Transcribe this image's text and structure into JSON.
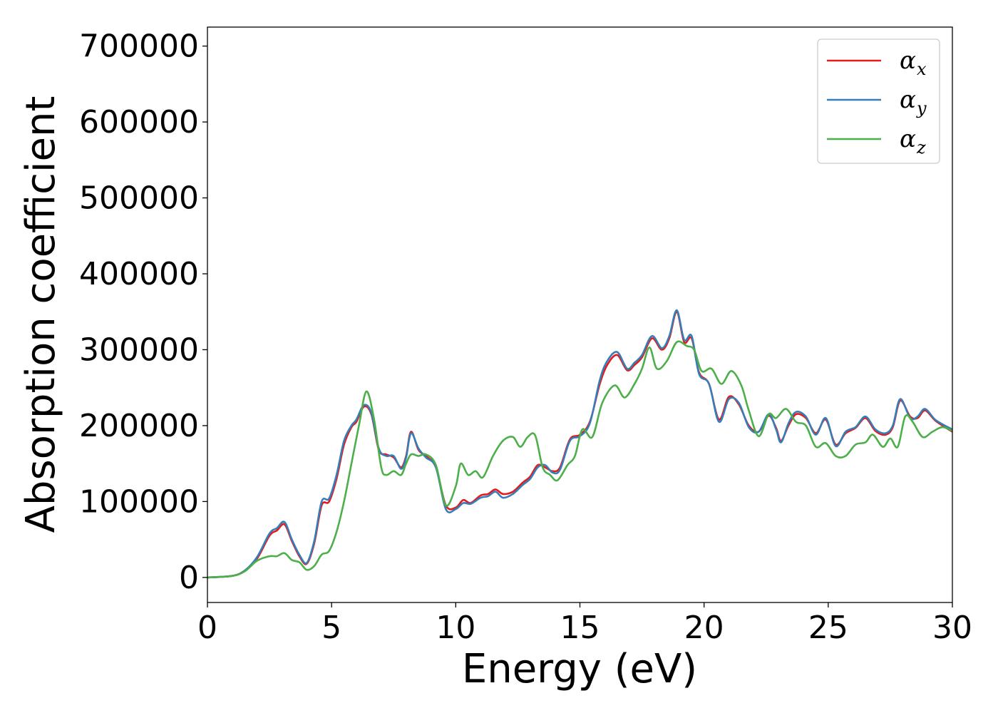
{
  "chart_data": {
    "type": "line",
    "title": "",
    "xlabel": "Energy (eV)",
    "ylabel": "Absorption coefficient",
    "xlim": [
      0,
      30
    ],
    "ylim": [
      -33000,
      725000
    ],
    "xticks": [
      0,
      5,
      10,
      15,
      20,
      25,
      30
    ],
    "yticks": [
      0,
      100000,
      200000,
      300000,
      400000,
      500000,
      600000,
      700000
    ],
    "grid": false,
    "legend_position": "top-right",
    "series": [
      {
        "name_symbol": "α",
        "name_sub": "x",
        "color": "#e41a1c",
        "points": [
          [
            0,
            0
          ],
          [
            1,
            2000
          ],
          [
            1.5,
            9000
          ],
          [
            2,
            25000
          ],
          [
            2.5,
            55000
          ],
          [
            2.8,
            62000
          ],
          [
            3.1,
            70000
          ],
          [
            3.4,
            48000
          ],
          [
            3.7,
            28000
          ],
          [
            4.0,
            18000
          ],
          [
            4.3,
            45000
          ],
          [
            4.6,
            95000
          ],
          [
            4.9,
            100000
          ],
          [
            5.2,
            130000
          ],
          [
            5.5,
            175000
          ],
          [
            5.8,
            198000
          ],
          [
            6.0,
            205000
          ],
          [
            6.3,
            225000
          ],
          [
            6.6,
            215000
          ],
          [
            6.9,
            168000
          ],
          [
            7.2,
            162000
          ],
          [
            7.5,
            158000
          ],
          [
            7.8,
            145000
          ],
          [
            8.0,
            160000
          ],
          [
            8.2,
            192000
          ],
          [
            8.5,
            168000
          ],
          [
            8.8,
            160000
          ],
          [
            9.2,
            145000
          ],
          [
            9.6,
            95000
          ],
          [
            10,
            92000
          ],
          [
            10.3,
            102000
          ],
          [
            10.6,
            98000
          ],
          [
            11,
            108000
          ],
          [
            11.3,
            110000
          ],
          [
            11.6,
            116000
          ],
          [
            11.9,
            110000
          ],
          [
            12.3,
            113000
          ],
          [
            12.7,
            125000
          ],
          [
            13,
            133000
          ],
          [
            13.3,
            148000
          ],
          [
            13.6,
            145000
          ],
          [
            13.9,
            140000
          ],
          [
            14.2,
            145000
          ],
          [
            14.6,
            182000
          ],
          [
            15,
            188000
          ],
          [
            15.4,
            205000
          ],
          [
            15.8,
            255000
          ],
          [
            16.1,
            280000
          ],
          [
            16.5,
            293000
          ],
          [
            16.9,
            273000
          ],
          [
            17.2,
            280000
          ],
          [
            17.5,
            290000
          ],
          [
            17.9,
            315000
          ],
          [
            18.3,
            300000
          ],
          [
            18.6,
            315000
          ],
          [
            18.9,
            350000
          ],
          [
            19.2,
            310000
          ],
          [
            19.5,
            315000
          ],
          [
            19.8,
            270000
          ],
          [
            20.2,
            255000
          ],
          [
            20.6,
            208000
          ],
          [
            21,
            238000
          ],
          [
            21.4,
            228000
          ],
          [
            21.8,
            200000
          ],
          [
            22.2,
            192000
          ],
          [
            22.6,
            213000
          ],
          [
            22.9,
            197000
          ],
          [
            23.1,
            180000
          ],
          [
            23.4,
            200000
          ],
          [
            23.7,
            215000
          ],
          [
            24.1,
            210000
          ],
          [
            24.5,
            190000
          ],
          [
            24.9,
            208000
          ],
          [
            25.3,
            175000
          ],
          [
            25.7,
            190000
          ],
          [
            26.1,
            197000
          ],
          [
            26.5,
            210000
          ],
          [
            26.9,
            193000
          ],
          [
            27.3,
            188000
          ],
          [
            27.6,
            198000
          ],
          [
            27.9,
            233000
          ],
          [
            28.3,
            212000
          ],
          [
            28.6,
            210000
          ],
          [
            28.9,
            220000
          ],
          [
            29.3,
            207000
          ],
          [
            29.7,
            198000
          ],
          [
            30,
            192000
          ]
        ]
      },
      {
        "name_symbol": "α",
        "name_sub": "y",
        "color": "#377eb8",
        "points": [
          [
            0,
            0
          ],
          [
            1,
            2000
          ],
          [
            1.5,
            9000
          ],
          [
            2,
            27000
          ],
          [
            2.5,
            58000
          ],
          [
            2.8,
            65000
          ],
          [
            3.1,
            73000
          ],
          [
            3.4,
            50000
          ],
          [
            3.7,
            30000
          ],
          [
            4.0,
            19000
          ],
          [
            4.3,
            48000
          ],
          [
            4.6,
            100000
          ],
          [
            4.9,
            104000
          ],
          [
            5.2,
            135000
          ],
          [
            5.5,
            180000
          ],
          [
            5.8,
            200000
          ],
          [
            6.0,
            208000
          ],
          [
            6.3,
            227000
          ],
          [
            6.6,
            217000
          ],
          [
            6.9,
            170000
          ],
          [
            7.2,
            160000
          ],
          [
            7.5,
            160000
          ],
          [
            7.8,
            143000
          ],
          [
            8.0,
            158000
          ],
          [
            8.2,
            190000
          ],
          [
            8.5,
            170000
          ],
          [
            8.8,
            158000
          ],
          [
            9.2,
            145000
          ],
          [
            9.6,
            90000
          ],
          [
            10,
            90000
          ],
          [
            10.3,
            98000
          ],
          [
            10.6,
            97000
          ],
          [
            11,
            105000
          ],
          [
            11.3,
            107000
          ],
          [
            11.6,
            113000
          ],
          [
            11.9,
            105000
          ],
          [
            12.3,
            110000
          ],
          [
            12.7,
            122000
          ],
          [
            13,
            130000
          ],
          [
            13.3,
            145000
          ],
          [
            13.6,
            148000
          ],
          [
            13.9,
            138000
          ],
          [
            14.2,
            142000
          ],
          [
            14.6,
            180000
          ],
          [
            15,
            186000
          ],
          [
            15.4,
            203000
          ],
          [
            15.8,
            260000
          ],
          [
            16.1,
            285000
          ],
          [
            16.5,
            297000
          ],
          [
            16.9,
            275000
          ],
          [
            17.2,
            283000
          ],
          [
            17.5,
            293000
          ],
          [
            17.9,
            318000
          ],
          [
            18.3,
            302000
          ],
          [
            18.6,
            318000
          ],
          [
            18.9,
            352000
          ],
          [
            19.2,
            313000
          ],
          [
            19.5,
            318000
          ],
          [
            19.8,
            268000
          ],
          [
            20.2,
            255000
          ],
          [
            20.6,
            205000
          ],
          [
            21,
            235000
          ],
          [
            21.4,
            230000
          ],
          [
            21.8,
            198000
          ],
          [
            22.2,
            192000
          ],
          [
            22.6,
            215000
          ],
          [
            22.9,
            195000
          ],
          [
            23.1,
            178000
          ],
          [
            23.4,
            203000
          ],
          [
            23.7,
            218000
          ],
          [
            24.1,
            212000
          ],
          [
            24.5,
            188000
          ],
          [
            24.9,
            210000
          ],
          [
            25.3,
            173000
          ],
          [
            25.7,
            192000
          ],
          [
            26.1,
            198000
          ],
          [
            26.5,
            212000
          ],
          [
            26.9,
            195000
          ],
          [
            27.3,
            190000
          ],
          [
            27.6,
            200000
          ],
          [
            27.9,
            235000
          ],
          [
            28.3,
            210000
          ],
          [
            28.6,
            212000
          ],
          [
            28.9,
            222000
          ],
          [
            29.3,
            208000
          ],
          [
            29.7,
            200000
          ],
          [
            30,
            195000
          ]
        ]
      },
      {
        "name_symbol": "α",
        "name_sub": "z",
        "color": "#4daf4a",
        "points": [
          [
            0,
            0
          ],
          [
            1,
            2000
          ],
          [
            1.5,
            8000
          ],
          [
            2,
            22000
          ],
          [
            2.5,
            28000
          ],
          [
            2.8,
            28000
          ],
          [
            3.1,
            32000
          ],
          [
            3.4,
            23000
          ],
          [
            3.7,
            20000
          ],
          [
            4.0,
            10000
          ],
          [
            4.3,
            15000
          ],
          [
            4.6,
            30000
          ],
          [
            4.9,
            35000
          ],
          [
            5.2,
            60000
          ],
          [
            5.5,
            100000
          ],
          [
            5.8,
            150000
          ],
          [
            6.1,
            200000
          ],
          [
            6.4,
            245000
          ],
          [
            6.7,
            210000
          ],
          [
            7.0,
            145000
          ],
          [
            7.2,
            135000
          ],
          [
            7.5,
            140000
          ],
          [
            7.8,
            135000
          ],
          [
            8.0,
            150000
          ],
          [
            8.2,
            162000
          ],
          [
            8.5,
            160000
          ],
          [
            8.8,
            162000
          ],
          [
            9.2,
            148000
          ],
          [
            9.6,
            95000
          ],
          [
            10,
            120000
          ],
          [
            10.2,
            150000
          ],
          [
            10.5,
            135000
          ],
          [
            10.8,
            140000
          ],
          [
            11.1,
            132000
          ],
          [
            11.5,
            160000
          ],
          [
            11.9,
            180000
          ],
          [
            12.3,
            185000
          ],
          [
            12.6,
            172000
          ],
          [
            12.9,
            185000
          ],
          [
            13.2,
            187000
          ],
          [
            13.5,
            145000
          ],
          [
            13.8,
            135000
          ],
          [
            14.1,
            128000
          ],
          [
            14.5,
            148000
          ],
          [
            14.8,
            160000
          ],
          [
            15.1,
            195000
          ],
          [
            15.5,
            185000
          ],
          [
            15.9,
            230000
          ],
          [
            16.4,
            253000
          ],
          [
            16.8,
            237000
          ],
          [
            17.2,
            255000
          ],
          [
            17.5,
            275000
          ],
          [
            17.8,
            303000
          ],
          [
            18.1,
            275000
          ],
          [
            18.5,
            285000
          ],
          [
            18.9,
            310000
          ],
          [
            19.3,
            305000
          ],
          [
            19.6,
            300000
          ],
          [
            19.9,
            272000
          ],
          [
            20.3,
            275000
          ],
          [
            20.7,
            255000
          ],
          [
            21.1,
            272000
          ],
          [
            21.5,
            253000
          ],
          [
            21.8,
            220000
          ],
          [
            22.2,
            186000
          ],
          [
            22.6,
            215000
          ],
          [
            22.9,
            210000
          ],
          [
            23.3,
            222000
          ],
          [
            23.7,
            205000
          ],
          [
            24.1,
            200000
          ],
          [
            24.5,
            172000
          ],
          [
            24.9,
            177000
          ],
          [
            25.3,
            160000
          ],
          [
            25.7,
            160000
          ],
          [
            26.1,
            175000
          ],
          [
            26.5,
            178000
          ],
          [
            26.8,
            188000
          ],
          [
            27.2,
            172000
          ],
          [
            27.5,
            183000
          ],
          [
            27.8,
            172000
          ],
          [
            28.1,
            212000
          ],
          [
            28.4,
            205000
          ],
          [
            28.8,
            185000
          ],
          [
            29.2,
            192000
          ],
          [
            29.6,
            198000
          ],
          [
            30,
            193000
          ]
        ]
      }
    ]
  }
}
